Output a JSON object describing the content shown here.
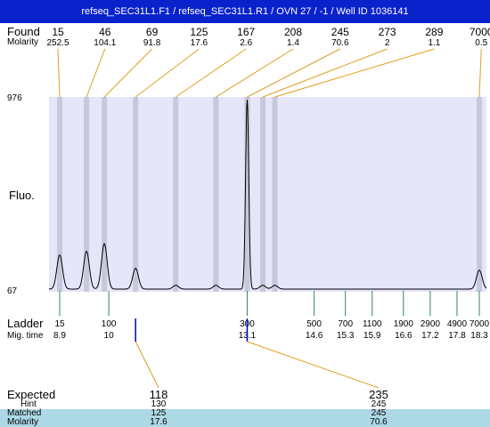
{
  "title": "refseq_SEC31L1.F1 / refseq_SEC31L1.R1 / OVN 27 / -1 / Well ID 1036141",
  "colors": {
    "title_bg": "#0a22cc",
    "plot_bg": "#e6e6fa",
    "band": "#c8c8dc",
    "connector": "#e0a020",
    "trace": "#000000",
    "ladder_tick": "#2e8b57",
    "matched_marker": "#0000cc",
    "matched_row_bg": "#add8e6"
  },
  "labels": {
    "found": "Found",
    "molarity": "Molarity",
    "fluo": "Fluo.",
    "ladder": "Ladder",
    "mig_time": "Mig. time",
    "expected": "Expected",
    "hint": "Hint",
    "matched": "Matched",
    "molarity_row": "Molarity"
  },
  "chart_data": {
    "type": "line",
    "y_axis": {
      "min": 67,
      "max": 976,
      "ticks": [
        "976",
        "67"
      ]
    },
    "found": [
      {
        "size": "15",
        "molarity": "252.5",
        "mig_time": 8.9,
        "peak": 0.18
      },
      {
        "size": "46",
        "molarity": "104.1",
        "mig_time": 9.5,
        "peak": 0.2
      },
      {
        "size": "69",
        "molarity": "91.8",
        "mig_time": 9.9,
        "peak": 0.24
      },
      {
        "size": "125",
        "molarity": "17.6",
        "mig_time": 10.6,
        "peak": 0.11
      },
      {
        "size": "167",
        "molarity": "2.6",
        "mig_time": 11.5,
        "peak": 0.02
      },
      {
        "size": "208",
        "molarity": "1.4",
        "mig_time": 12.4,
        "peak": 0.02
      },
      {
        "size": "245",
        "molarity": "70.6",
        "mig_time": 13.1,
        "peak": 1.0
      },
      {
        "size": "273",
        "molarity": "2",
        "mig_time": 13.45,
        "peak": 0.02
      },
      {
        "size": "289",
        "molarity": "1.1",
        "mig_time": 13.72,
        "peak": 0.02
      },
      {
        "size": "7000",
        "molarity": "0.5",
        "mig_time": 18.3,
        "peak": 0.1
      }
    ],
    "ladder": [
      {
        "size": "15",
        "mig_time": "8.9"
      },
      {
        "size": "100",
        "mig_time": "10"
      },
      {
        "size": "300",
        "mig_time": "13.1"
      },
      {
        "size": "500",
        "mig_time": "14.6"
      },
      {
        "size": "700",
        "mig_time": "15.3"
      },
      {
        "size": "1100",
        "mig_time": "15.9"
      },
      {
        "size": "1900",
        "mig_time": "16.6"
      },
      {
        "size": "2900",
        "mig_time": "17.2"
      },
      {
        "size": "4900",
        "mig_time": "17.8"
      },
      {
        "size": "7000",
        "mig_time": "18.3"
      }
    ],
    "matched_markers": [
      10.6,
      13.1
    ],
    "table": {
      "expected": [
        "118",
        "235"
      ],
      "hint": [
        "130",
        "245"
      ],
      "matched": [
        "125",
        "245"
      ],
      "molarity": [
        "17.6",
        "70.6"
      ]
    }
  }
}
